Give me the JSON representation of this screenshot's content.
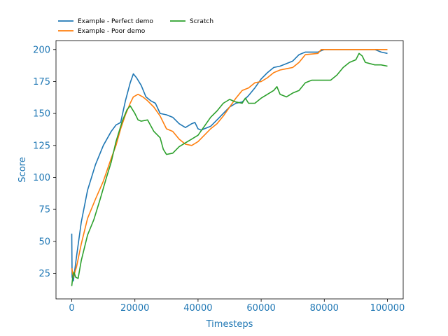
{
  "chart_data": {
    "type": "line",
    "xlabel": "Timesteps",
    "ylabel": "Score",
    "xlim": [
      -5000,
      105000
    ],
    "ylim": [
      5,
      207
    ],
    "xticks": [
      0,
      20000,
      40000,
      60000,
      80000,
      100000
    ],
    "yticks": [
      25,
      50,
      75,
      100,
      125,
      150,
      175,
      200
    ],
    "grid": false,
    "legend_position": "top-left outside",
    "label_color": "#1f77b4",
    "series": [
      {
        "name": "Example - Perfect demo",
        "color": "#1f77b4",
        "points": [
          [
            0,
            56
          ],
          [
            100,
            22
          ],
          [
            500,
            19
          ],
          [
            1500,
            38
          ],
          [
            3000,
            65
          ],
          [
            5000,
            90
          ],
          [
            7500,
            110
          ],
          [
            10000,
            125
          ],
          [
            12500,
            136
          ],
          [
            14000,
            141
          ],
          [
            15500,
            143
          ],
          [
            17000,
            160
          ],
          [
            18500,
            174
          ],
          [
            19500,
            181
          ],
          [
            20500,
            178
          ],
          [
            22000,
            172
          ],
          [
            23500,
            163
          ],
          [
            25000,
            160
          ],
          [
            26500,
            158
          ],
          [
            28000,
            150
          ],
          [
            30000,
            149
          ],
          [
            32000,
            147
          ],
          [
            34000,
            142
          ],
          [
            36000,
            139
          ],
          [
            38000,
            142
          ],
          [
            39000,
            143
          ],
          [
            40000,
            138
          ],
          [
            41000,
            137
          ],
          [
            42000,
            138
          ],
          [
            44000,
            140
          ],
          [
            46000,
            145
          ],
          [
            48000,
            150
          ],
          [
            50000,
            155
          ],
          [
            52000,
            158
          ],
          [
            54000,
            159
          ],
          [
            56000,
            164
          ],
          [
            58000,
            170
          ],
          [
            60000,
            177
          ],
          [
            62000,
            182
          ],
          [
            64000,
            186
          ],
          [
            66000,
            187
          ],
          [
            68000,
            189
          ],
          [
            70000,
            191
          ],
          [
            72000,
            196
          ],
          [
            74000,
            198
          ],
          [
            78000,
            198
          ],
          [
            80000,
            200
          ],
          [
            84000,
            200
          ],
          [
            90000,
            200
          ],
          [
            96000,
            200
          ],
          [
            98000,
            198
          ],
          [
            100000,
            197
          ]
        ]
      },
      {
        "name": "Example - Poor demo",
        "color": "#ff7f0e",
        "points": [
          [
            0,
            29
          ],
          [
            500,
            22
          ],
          [
            1500,
            30
          ],
          [
            3000,
            48
          ],
          [
            5000,
            68
          ],
          [
            7500,
            83
          ],
          [
            10000,
            97
          ],
          [
            12500,
            115
          ],
          [
            14000,
            125
          ],
          [
            15500,
            138
          ],
          [
            17000,
            149
          ],
          [
            18500,
            158
          ],
          [
            19500,
            163
          ],
          [
            21000,
            165
          ],
          [
            22500,
            163
          ],
          [
            24000,
            160
          ],
          [
            26000,
            155
          ],
          [
            28000,
            148
          ],
          [
            30000,
            138
          ],
          [
            32000,
            136
          ],
          [
            34000,
            130
          ],
          [
            36000,
            126
          ],
          [
            38000,
            125
          ],
          [
            40000,
            128
          ],
          [
            42000,
            133
          ],
          [
            44000,
            138
          ],
          [
            46000,
            142
          ],
          [
            48000,
            148
          ],
          [
            50000,
            155
          ],
          [
            52000,
            162
          ],
          [
            54000,
            168
          ],
          [
            56000,
            170
          ],
          [
            58000,
            174
          ],
          [
            60000,
            175
          ],
          [
            62000,
            178
          ],
          [
            64000,
            182
          ],
          [
            66000,
            184
          ],
          [
            68000,
            185
          ],
          [
            70000,
            186
          ],
          [
            72000,
            190
          ],
          [
            74000,
            196
          ],
          [
            78000,
            197
          ],
          [
            79000,
            200
          ],
          [
            84000,
            200
          ],
          [
            90000,
            200
          ],
          [
            96000,
            200
          ],
          [
            100000,
            200
          ]
        ]
      },
      {
        "name": "Scratch",
        "color": "#2ca02c",
        "points": [
          [
            0,
            15
          ],
          [
            300,
            22
          ],
          [
            700,
            26
          ],
          [
            1200,
            22
          ],
          [
            2000,
            21
          ],
          [
            3000,
            35
          ],
          [
            5000,
            55
          ],
          [
            7000,
            67
          ],
          [
            9000,
            83
          ],
          [
            11000,
            100
          ],
          [
            12500,
            112
          ],
          [
            14000,
            128
          ],
          [
            16000,
            144
          ],
          [
            17500,
            153
          ],
          [
            18500,
            156
          ],
          [
            20000,
            150
          ],
          [
            21000,
            145
          ],
          [
            22000,
            144
          ],
          [
            24000,
            145
          ],
          [
            26000,
            136
          ],
          [
            28000,
            131
          ],
          [
            29000,
            122
          ],
          [
            30000,
            118
          ],
          [
            32000,
            119
          ],
          [
            34000,
            124
          ],
          [
            36000,
            127
          ],
          [
            38000,
            130
          ],
          [
            40000,
            133
          ],
          [
            42000,
            140
          ],
          [
            44000,
            147
          ],
          [
            46000,
            152
          ],
          [
            48000,
            158
          ],
          [
            50000,
            161
          ],
          [
            52000,
            159
          ],
          [
            54000,
            158
          ],
          [
            55000,
            162
          ],
          [
            56000,
            158
          ],
          [
            58000,
            158
          ],
          [
            60000,
            162
          ],
          [
            62000,
            165
          ],
          [
            64000,
            168
          ],
          [
            65000,
            171
          ],
          [
            66000,
            165
          ],
          [
            68000,
            163
          ],
          [
            70000,
            166
          ],
          [
            72000,
            168
          ],
          [
            74000,
            174
          ],
          [
            76000,
            176
          ],
          [
            78000,
            176
          ],
          [
            80000,
            176
          ],
          [
            82000,
            176
          ],
          [
            84000,
            180
          ],
          [
            86000,
            186
          ],
          [
            88000,
            190
          ],
          [
            90000,
            192
          ],
          [
            91000,
            197
          ],
          [
            92000,
            195
          ],
          [
            93000,
            190
          ],
          [
            96000,
            188
          ],
          [
            98000,
            188
          ],
          [
            100000,
            187
          ]
        ]
      }
    ]
  }
}
